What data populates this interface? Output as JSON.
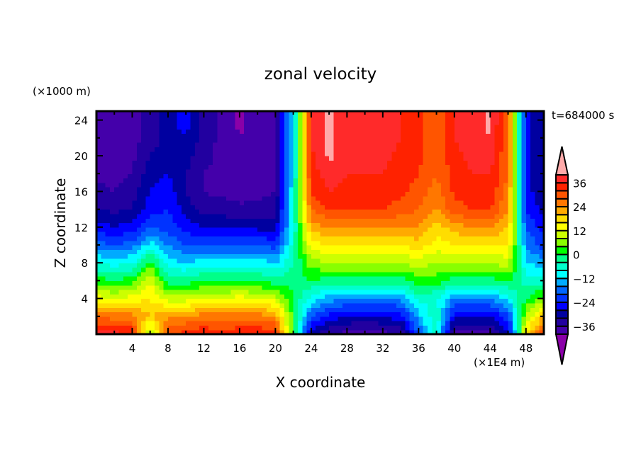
{
  "chart_data": {
    "type": "heatmap",
    "title": "zonal velocity",
    "xlabel": "X coordinate",
    "ylabel": "Z coordinate",
    "x_units": "(×1E4 m)",
    "y_units": "(×1000 m)",
    "time_label": "t=684000 s",
    "xlim": [
      0,
      50
    ],
    "ylim": [
      0,
      25
    ],
    "x_ticks": [
      4,
      8,
      12,
      16,
      20,
      24,
      28,
      32,
      36,
      40,
      44,
      48
    ],
    "y_ticks": [
      4,
      8,
      12,
      16,
      20,
      24
    ],
    "colorbar": {
      "levels": [
        -40,
        -36,
        -32,
        -28,
        -24,
        -20,
        -16,
        -12,
        -8,
        -4,
        0,
        4,
        8,
        12,
        16,
        20,
        24,
        28,
        32,
        36,
        40
      ],
      "tick_labels": [
        "36",
        "24",
        "12",
        "0",
        "−12",
        "−24",
        "−36"
      ],
      "tick_values": [
        36,
        24,
        12,
        0,
        -12,
        -24,
        -36
      ],
      "colors": [
        "#8a00a8",
        "#4400aa",
        "#2200a0",
        "#0000a0",
        "#0000ff",
        "#0033ff",
        "#0066ff",
        "#00aaff",
        "#00ffff",
        "#00ffcc",
        "#00ff88",
        "#00ff00",
        "#88ff00",
        "#ccff00",
        "#ffff00",
        "#ffdd00",
        "#ffaa00",
        "#ff7700",
        "#ff5500",
        "#ff2200",
        "#ff2a2a",
        "#ffaaaa"
      ]
    },
    "grid_x": [
      0,
      2,
      4,
      6,
      8,
      10,
      12,
      14,
      16,
      18,
      20,
      22,
      24,
      26,
      28,
      30,
      32,
      34,
      36,
      38,
      40,
      42,
      44,
      46,
      48,
      50
    ],
    "grid_z": [
      0,
      2,
      4,
      6,
      8,
      10,
      12,
      14,
      16,
      18,
      20,
      22,
      24
    ],
    "values_by_x": [
      [
        38,
        28,
        14,
        2,
        -8,
        -18,
        -26,
        -32,
        -35,
        -37,
        -38,
        -39,
        -39
      ],
      [
        38,
        26,
        12,
        0,
        -10,
        -20,
        -28,
        -33,
        -36,
        -37,
        -38,
        -39,
        -39
      ],
      [
        36,
        26,
        14,
        2,
        -8,
        -18,
        -26,
        -32,
        -34,
        -36,
        -37,
        -38,
        -38
      ],
      [
        4,
        20,
        16,
        12,
        2,
        -10,
        -20,
        -26,
        -28,
        -30,
        -32,
        -34,
        -34
      ],
      [
        30,
        24,
        10,
        -2,
        -10,
        -16,
        -22,
        -24,
        -26,
        -28,
        -30,
        -30,
        -30
      ],
      [
        34,
        24,
        10,
        -2,
        -12,
        -20,
        -26,
        -30,
        -32,
        -32,
        -30,
        -28,
        -26
      ],
      [
        36,
        26,
        12,
        0,
        -10,
        -20,
        -28,
        -34,
        -36,
        -36,
        -35,
        -34,
        -34
      ],
      [
        34,
        26,
        12,
        0,
        -10,
        -20,
        -28,
        -34,
        -37,
        -37,
        -37,
        -37,
        -37
      ],
      [
        36,
        26,
        14,
        0,
        -10,
        -20,
        -29,
        -35,
        -38,
        -39,
        -40,
        -40,
        -41
      ],
      [
        36,
        26,
        12,
        0,
        -10,
        -20,
        -29,
        -35,
        -37,
        -38,
        -38,
        -38,
        -38
      ],
      [
        36,
        24,
        10,
        -2,
        -12,
        -22,
        -30,
        -34,
        -36,
        -36,
        -36,
        -36,
        -36
      ],
      [
        0,
        2,
        0,
        -2,
        -4,
        -6,
        -8,
        -8,
        -8,
        -10,
        -10,
        -10,
        -10
      ],
      [
        -30,
        -20,
        -10,
        0,
        6,
        14,
        22,
        28,
        32,
        34,
        35,
        36,
        36
      ],
      [
        -36,
        -26,
        -14,
        -2,
        8,
        16,
        24,
        32,
        36,
        38,
        41,
        41,
        41
      ],
      [
        -38,
        -28,
        -16,
        -2,
        8,
        16,
        24,
        32,
        35,
        36,
        37,
        38,
        38
      ],
      [
        -40,
        -28,
        -16,
        -2,
        8,
        16,
        24,
        32,
        35,
        36,
        37,
        38,
        38
      ],
      [
        -38,
        -28,
        -16,
        -2,
        8,
        16,
        24,
        32,
        35,
        36,
        37,
        38,
        38
      ],
      [
        -36,
        -26,
        -16,
        -2,
        8,
        16,
        24,
        30,
        33,
        34,
        35,
        36,
        36
      ],
      [
        -20,
        -14,
        -6,
        2,
        10,
        18,
        24,
        28,
        30,
        32,
        33,
        34,
        34
      ],
      [
        -6,
        -4,
        -8,
        2,
        8,
        14,
        18,
        24,
        26,
        28,
        28,
        28,
        28
      ],
      [
        -38,
        -28,
        -16,
        -2,
        8,
        16,
        22,
        30,
        33,
        34,
        35,
        36,
        36
      ],
      [
        -38,
        -28,
        -16,
        -2,
        8,
        16,
        24,
        32,
        35,
        36,
        37,
        38,
        38
      ],
      [
        -38,
        -28,
        -16,
        -2,
        8,
        16,
        24,
        32,
        35,
        36,
        38,
        40,
        41
      ],
      [
        -30,
        -22,
        -10,
        0,
        10,
        16,
        20,
        24,
        26,
        28,
        28,
        28,
        28
      ],
      [
        16,
        8,
        0,
        -6,
        -12,
        -16,
        -20,
        -24,
        -26,
        -26,
        -26,
        -26,
        -26
      ],
      [
        34,
        20,
        6,
        -6,
        -14,
        -22,
        -26,
        -30,
        -32,
        -32,
        -32,
        -32,
        -32
      ]
    ]
  }
}
